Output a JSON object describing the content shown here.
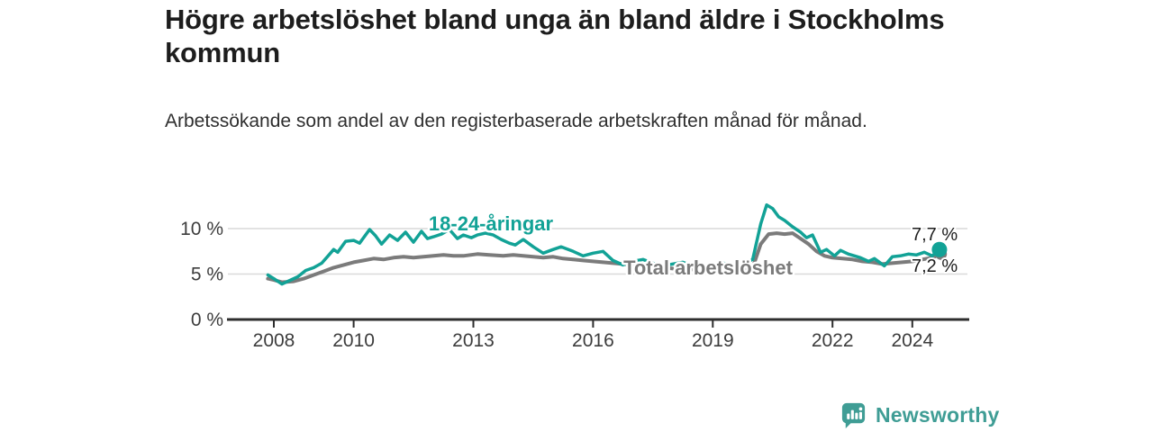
{
  "header": {
    "title": "Högre arbetslöshet bland unga än bland äldre i Stockholms kommun",
    "subtitle": "Arbetssökande som andel av den registerbaserade arbetskraften månad för månad."
  },
  "colors": {
    "accent_teal": "#12a296",
    "accent_gray": "#7b7b7b",
    "grid": "#d9d9d9",
    "axis": "#2e2e2e",
    "text_dark": "#1d1d1d",
    "text_muted": "#3d3d3d",
    "brand_teal": "#3f9d95"
  },
  "chart_data": {
    "type": "line",
    "unit": "%",
    "grid": "horizontal-only",
    "x_axis": {
      "range": [
        2007.6,
        2025.2
      ],
      "ticks": [
        {
          "value": 2008,
          "label": "2008"
        },
        {
          "value": 2010,
          "label": "2010"
        },
        {
          "value": 2013,
          "label": "2013"
        },
        {
          "value": 2016,
          "label": "2016"
        },
        {
          "value": 2019,
          "label": "2019"
        },
        {
          "value": 2022,
          "label": "2022"
        },
        {
          "value": 2024,
          "label": "2024"
        }
      ]
    },
    "y_axis": {
      "range": [
        0,
        13
      ],
      "ticks": [
        {
          "value": 0,
          "label": "0 %"
        },
        {
          "value": 5,
          "label": "5 %"
        },
        {
          "value": 10,
          "label": "10 %"
        }
      ]
    },
    "series": [
      {
        "id": "total",
        "name": "Total arbetslöshet",
        "color": "#7b7b7b",
        "line_width": 4,
        "end_label": "7,2 %",
        "end_value": 7.2,
        "points": [
          [
            2007.85,
            4.5
          ],
          [
            2008.0,
            4.35
          ],
          [
            2008.2,
            4.1
          ],
          [
            2008.5,
            4.2
          ],
          [
            2008.75,
            4.5
          ],
          [
            2009.0,
            4.9
          ],
          [
            2009.25,
            5.3
          ],
          [
            2009.5,
            5.7
          ],
          [
            2009.75,
            6.0
          ],
          [
            2010.0,
            6.3
          ],
          [
            2010.25,
            6.5
          ],
          [
            2010.5,
            6.7
          ],
          [
            2010.75,
            6.6
          ],
          [
            2011.0,
            6.8
          ],
          [
            2011.25,
            6.9
          ],
          [
            2011.5,
            6.8
          ],
          [
            2011.75,
            6.9
          ],
          [
            2012.0,
            7.0
          ],
          [
            2012.25,
            7.1
          ],
          [
            2012.5,
            7.0
          ],
          [
            2012.75,
            7.0
          ],
          [
            2013.1,
            7.2
          ],
          [
            2013.4,
            7.1
          ],
          [
            2013.75,
            7.0
          ],
          [
            2014.0,
            7.1
          ],
          [
            2014.25,
            7.0
          ],
          [
            2014.5,
            6.9
          ],
          [
            2014.75,
            6.8
          ],
          [
            2015.0,
            6.9
          ],
          [
            2015.25,
            6.7
          ],
          [
            2015.5,
            6.6
          ],
          [
            2015.75,
            6.5
          ],
          [
            2016.0,
            6.4
          ],
          [
            2016.25,
            6.3
          ],
          [
            2016.5,
            6.2
          ],
          [
            2016.75,
            6.1
          ],
          [
            2017.0,
            6.0
          ],
          [
            2017.5,
            5.8
          ],
          [
            2018.0,
            5.6
          ],
          [
            2018.5,
            5.5
          ],
          [
            2019.0,
            5.4
          ],
          [
            2019.5,
            5.5
          ],
          [
            2019.75,
            5.5
          ],
          [
            2020.0,
            5.7
          ],
          [
            2020.2,
            8.3
          ],
          [
            2020.4,
            9.4
          ],
          [
            2020.6,
            9.5
          ],
          [
            2020.8,
            9.4
          ],
          [
            2021.0,
            9.5
          ],
          [
            2021.2,
            8.9
          ],
          [
            2021.4,
            8.3
          ],
          [
            2021.6,
            7.5
          ],
          [
            2021.8,
            7.0
          ],
          [
            2022.0,
            6.8
          ],
          [
            2022.25,
            6.7
          ],
          [
            2022.5,
            6.6
          ],
          [
            2022.75,
            6.4
          ],
          [
            2023.0,
            6.3
          ],
          [
            2023.25,
            6.1
          ],
          [
            2023.5,
            6.2
          ],
          [
            2023.75,
            6.3
          ],
          [
            2024.0,
            6.4
          ],
          [
            2024.25,
            6.6
          ],
          [
            2024.5,
            6.8
          ],
          [
            2024.72,
            7.2
          ]
        ]
      },
      {
        "id": "18-24",
        "name": "18-24-åringar",
        "color": "#12a296",
        "line_width": 3.5,
        "end_label": "7,7 %",
        "end_value": 7.7,
        "points": [
          [
            2007.85,
            4.9
          ],
          [
            2008.0,
            4.5
          ],
          [
            2008.2,
            3.9
          ],
          [
            2008.4,
            4.3
          ],
          [
            2008.6,
            4.7
          ],
          [
            2008.8,
            5.4
          ],
          [
            2009.0,
            5.7
          ],
          [
            2009.2,
            6.2
          ],
          [
            2009.4,
            7.2
          ],
          [
            2009.5,
            7.7
          ],
          [
            2009.6,
            7.4
          ],
          [
            2009.8,
            8.6
          ],
          [
            2010.0,
            8.7
          ],
          [
            2010.15,
            8.4
          ],
          [
            2010.4,
            9.9
          ],
          [
            2010.55,
            9.2
          ],
          [
            2010.7,
            8.3
          ],
          [
            2010.9,
            9.3
          ],
          [
            2011.1,
            8.7
          ],
          [
            2011.3,
            9.6
          ],
          [
            2011.5,
            8.5
          ],
          [
            2011.7,
            9.7
          ],
          [
            2011.85,
            8.9
          ],
          [
            2012.0,
            9.1
          ],
          [
            2012.2,
            9.4
          ],
          [
            2012.4,
            9.9
          ],
          [
            2012.6,
            8.9
          ],
          [
            2012.75,
            9.3
          ],
          [
            2012.95,
            9.0
          ],
          [
            2013.1,
            9.3
          ],
          [
            2013.3,
            9.5
          ],
          [
            2013.5,
            9.3
          ],
          [
            2013.7,
            8.8
          ],
          [
            2013.9,
            8.4
          ],
          [
            2014.05,
            8.2
          ],
          [
            2014.25,
            8.8
          ],
          [
            2014.5,
            8.0
          ],
          [
            2014.75,
            7.3
          ],
          [
            2015.0,
            7.7
          ],
          [
            2015.2,
            8.0
          ],
          [
            2015.5,
            7.5
          ],
          [
            2015.75,
            7.0
          ],
          [
            2016.0,
            7.3
          ],
          [
            2016.25,
            7.5
          ],
          [
            2016.5,
            6.5
          ],
          [
            2016.75,
            6.0
          ],
          [
            2017.0,
            6.4
          ],
          [
            2017.25,
            6.6
          ],
          [
            2017.5,
            6.2
          ],
          [
            2017.75,
            5.9
          ],
          [
            2018.0,
            6.1
          ],
          [
            2018.25,
            6.3
          ],
          [
            2018.5,
            5.9
          ],
          [
            2018.75,
            5.7
          ],
          [
            2019.0,
            5.9
          ],
          [
            2019.25,
            6.2
          ],
          [
            2019.5,
            6.0
          ],
          [
            2019.75,
            6.1
          ],
          [
            2020.0,
            6.6
          ],
          [
            2020.2,
            10.5
          ],
          [
            2020.35,
            12.6
          ],
          [
            2020.5,
            12.2
          ],
          [
            2020.65,
            11.3
          ],
          [
            2020.8,
            10.9
          ],
          [
            2021.0,
            10.2
          ],
          [
            2021.2,
            9.6
          ],
          [
            2021.35,
            9.0
          ],
          [
            2021.5,
            9.3
          ],
          [
            2021.7,
            7.4
          ],
          [
            2021.85,
            7.7
          ],
          [
            2022.05,
            7.0
          ],
          [
            2022.2,
            7.6
          ],
          [
            2022.4,
            7.2
          ],
          [
            2022.55,
            7.0
          ],
          [
            2022.7,
            6.8
          ],
          [
            2022.9,
            6.4
          ],
          [
            2023.05,
            6.7
          ],
          [
            2023.3,
            5.9
          ],
          [
            2023.5,
            6.9
          ],
          [
            2023.7,
            7.0
          ],
          [
            2023.9,
            7.2
          ],
          [
            2024.1,
            7.1
          ],
          [
            2024.3,
            7.4
          ],
          [
            2024.5,
            7.0
          ],
          [
            2024.68,
            7.7
          ]
        ]
      }
    ]
  },
  "footer": {
    "brand": "Newsworthy"
  }
}
